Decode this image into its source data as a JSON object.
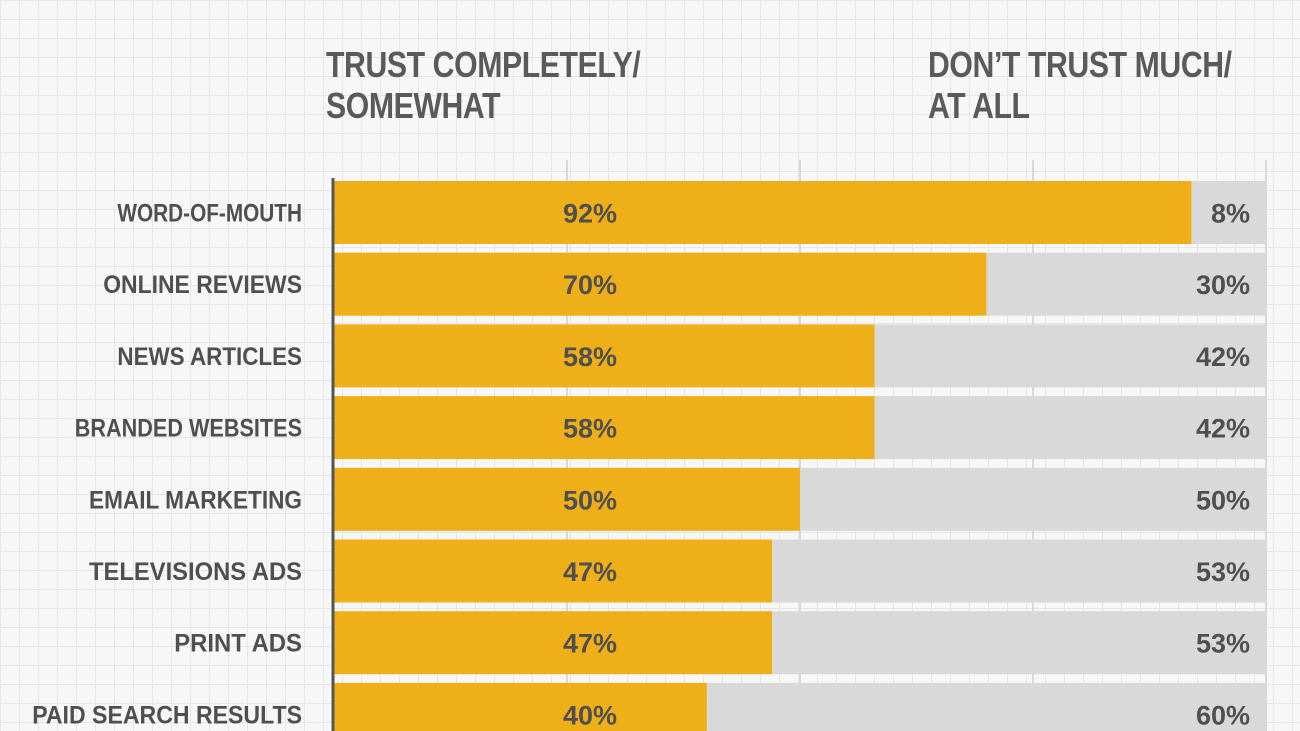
{
  "colors": {
    "trust": "#efaf18",
    "distrust": "#d9d9d9",
    "text": "#4f4f4f",
    "header_text": "#5a5a5a",
    "gridline": "#cfcfcf",
    "axis": "#555555"
  },
  "header": {
    "left": "TRUST COMPLETELY/\nSOMEWHAT",
    "right": "DON’T TRUST MUCH/\nAT ALL"
  },
  "chart_data": {
    "type": "bar",
    "orientation": "horizontal",
    "stacked": true,
    "xlim": [
      0,
      100
    ],
    "grid": true,
    "categories": [
      "WORD-OF-MOUTH",
      "ONLINE REVIEWS",
      "NEWS ARTICLES",
      "BRANDED WEBSITES",
      "EMAIL MARKETING",
      "TELEVISIONS ADS",
      "PRINT ADS",
      "PAID SEARCH RESULTS"
    ],
    "series": [
      {
        "name": "TRUST COMPLETELY/ SOMEWHAT",
        "values": [
          92,
          70,
          58,
          58,
          50,
          47,
          47,
          40
        ],
        "labels": [
          "92%",
          "70%",
          "58%",
          "58%",
          "50%",
          "47%",
          "47%",
          "40%"
        ]
      },
      {
        "name": "DON’T TRUST MUCH/ AT ALL",
        "values": [
          8,
          30,
          42,
          42,
          50,
          53,
          53,
          60
        ],
        "labels": [
          "8%",
          "30%",
          "42%",
          "42%",
          "50%",
          "53%",
          "53%",
          "60%"
        ]
      }
    ]
  }
}
